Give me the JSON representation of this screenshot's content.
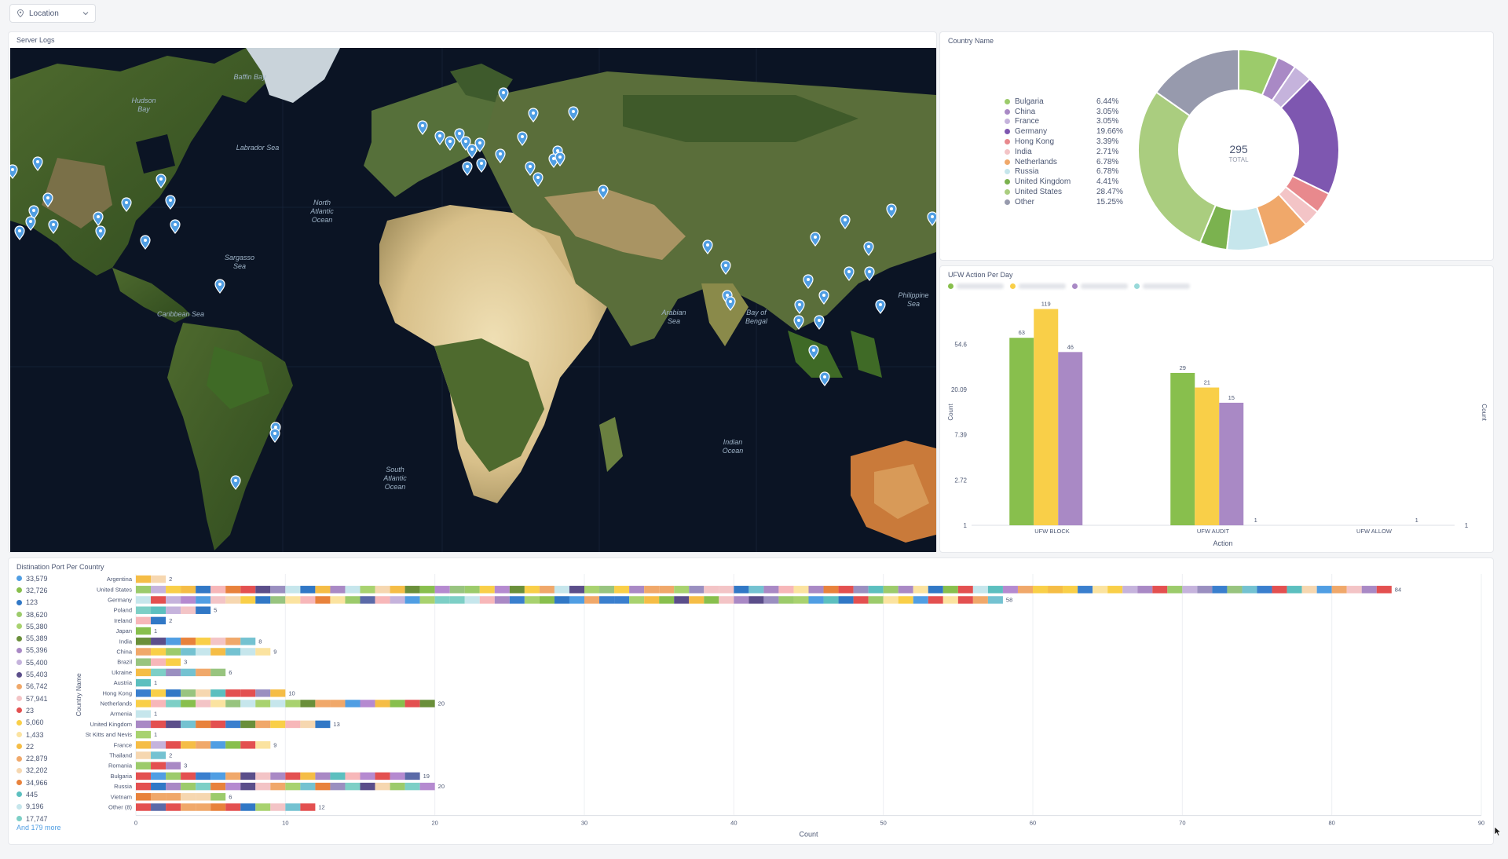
{
  "filter": {
    "label": "Location"
  },
  "map": {
    "title": "Server Logs",
    "labels": [
      {
        "text": "Hudson Bay",
        "lines": [
          "Hudson",
          "Bay"
        ]
      },
      {
        "text": "North Atlantic Ocean",
        "lines": [
          "North",
          "Atlantic",
          "Ocean"
        ]
      },
      {
        "text": "Sargasso Sea",
        "lines": [
          "Sargasso",
          "Sea"
        ]
      },
      {
        "text": "Caribbean Sea",
        "lines": [
          "Caribbean Sea"
        ]
      },
      {
        "text": "South Atlantic Ocean",
        "lines": [
          "South",
          "Atlantic",
          "Ocean"
        ]
      },
      {
        "text": "Indian Ocean",
        "lines": [
          "Indian",
          "Ocean"
        ]
      },
      {
        "text": "Arabian Sea",
        "lines": [
          "Arabian",
          "Sea"
        ]
      },
      {
        "text": "Bay of Bengal",
        "lines": [
          "Bay of",
          "Bengal"
        ]
      },
      {
        "text": "Philippine Sea",
        "lines": [
          "Philippine",
          "Sea"
        ]
      },
      {
        "text": "Labrador Sea",
        "lines": [
          "Labrador Sea"
        ]
      },
      {
        "text": "Baffin Bay",
        "lines": [
          "Baffin Bay"
        ]
      }
    ]
  },
  "pie": {
    "title": "Country Name",
    "total": "295",
    "total_label": "TOTAL",
    "slices": [
      {
        "name": "Bulgaria",
        "pct": 6.44,
        "label": "6.44%",
        "color": "#9ccb6b"
      },
      {
        "name": "China",
        "pct": 3.05,
        "label": "3.05%",
        "color": "#a989c5"
      },
      {
        "name": "France",
        "pct": 3.05,
        "label": "3.05%",
        "color": "#c5b3dc"
      },
      {
        "name": "Germany",
        "pct": 19.66,
        "label": "19.66%",
        "color": "#7e57b0"
      },
      {
        "name": "Hong Kong",
        "pct": 3.39,
        "label": "3.39%",
        "color": "#e8898d"
      },
      {
        "name": "India",
        "pct": 2.71,
        "label": "2.71%",
        "color": "#f3c4c6"
      },
      {
        "name": "Netherlands",
        "pct": 6.78,
        "label": "6.78%",
        "color": "#f0a86a"
      },
      {
        "name": "Russia",
        "pct": 6.78,
        "label": "6.78%",
        "color": "#c6e6ec"
      },
      {
        "name": "United Kingdom",
        "pct": 4.41,
        "label": "4.41%",
        "color": "#7bb24f"
      },
      {
        "name": "United States",
        "pct": 28.47,
        "label": "28.47%",
        "color": "#aacd7f"
      },
      {
        "name": "Other",
        "pct": 15.25,
        "label": "15.25%",
        "color": "#979aad"
      }
    ]
  },
  "ufw": {
    "title": "UFW Action Per Day",
    "chart_data": {
      "type": "bar",
      "categories": [
        "UFW BLOCK",
        "UFW AUDIT",
        "UFW ALLOW"
      ],
      "series": [
        {
          "values": [
            63,
            29,
            null
          ],
          "color": "#88bf4d"
        },
        {
          "values": [
            119,
            21,
            null
          ],
          "color": "#f9cf48"
        },
        {
          "values": [
            46,
            15,
            null
          ],
          "color": "#a989c5"
        },
        {
          "values": [
            null,
            1,
            1
          ],
          "color": "#98d9d9"
        }
      ],
      "xlabel": "Action",
      "ylabel": "Count",
      "y2label": "Count",
      "y_scale": "log",
      "y_ticks": [
        "54.6",
        "20.09",
        "7.39",
        "2.72",
        "1"
      ],
      "y2_tick": "1"
    }
  },
  "ports": {
    "title": "Distination Port Per Country",
    "legend": [
      {
        "label": "33,579",
        "color": "#509ee3"
      },
      {
        "label": "32,726",
        "color": "#88bf4d"
      },
      {
        "label": "123",
        "color": "#3178c6"
      },
      {
        "label": "38,620",
        "color": "#9ccb6b"
      },
      {
        "label": "55,380",
        "color": "#a8d26f"
      },
      {
        "label": "55,389",
        "color": "#6a8f3a"
      },
      {
        "label": "55,396",
        "color": "#a989c5"
      },
      {
        "label": "55,400",
        "color": "#c5b3dc"
      },
      {
        "label": "55,403",
        "color": "#5b4e8a"
      },
      {
        "label": "56,742",
        "color": "#f0a86a"
      },
      {
        "label": "57,941",
        "color": "#f3c4c6"
      },
      {
        "label": "23",
        "color": "#e35050"
      },
      {
        "label": "5,060",
        "color": "#f9cf48"
      },
      {
        "label": "1,433",
        "color": "#fbe3a0"
      },
      {
        "label": "22",
        "color": "#f5bd46"
      },
      {
        "label": "22,879",
        "color": "#f0a86a"
      },
      {
        "label": "32,202",
        "color": "#f6d7b0"
      },
      {
        "label": "34,966",
        "color": "#e8823c"
      },
      {
        "label": "445",
        "color": "#5cbfbf"
      },
      {
        "label": "9,196",
        "color": "#c6e6ec"
      },
      {
        "label": "17,747",
        "color": "#7dcfc6"
      }
    ],
    "more": "And 179 more",
    "chart_data": {
      "type": "bar",
      "orientation": "horizontal",
      "stacked": true,
      "categories": [
        "Argentina",
        "United States",
        "Germany",
        "Poland",
        "Ireland",
        "Japan",
        "India",
        "China",
        "Brazil",
        "Ukraine",
        "Austria",
        "Hong Kong",
        "Netherlands",
        "Armenia",
        "United Kingdom",
        "St Kitts and Nevis",
        "France",
        "Thailand",
        "Romania",
        "Bulgaria",
        "Russia",
        "Vietnam",
        "Other (8)"
      ],
      "values": [
        2,
        84,
        58,
        5,
        2,
        1,
        8,
        9,
        3,
        6,
        1,
        10,
        20,
        1,
        13,
        1,
        9,
        2,
        3,
        19,
        20,
        6,
        12
      ],
      "xlabel": "Count",
      "ylabel": "Country Name",
      "xlim": [
        0,
        90
      ],
      "x_ticks": [
        0,
        10,
        20,
        30,
        40,
        50,
        60,
        70,
        80,
        90
      ]
    }
  }
}
